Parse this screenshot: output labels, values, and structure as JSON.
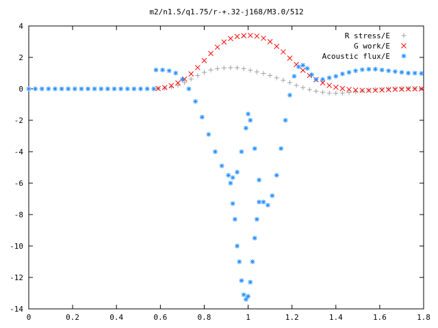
{
  "chart_data": {
    "type": "scatter",
    "title": "m2/n1.5/q1.75/r-+.32-j168/M3.0/512",
    "xlabel": "",
    "ylabel": "",
    "xlim": [
      0,
      1.8
    ],
    "ylim": [
      -14,
      4
    ],
    "x_ticks": [
      "0",
      "0.2",
      "0.4",
      "0.6",
      "0.8",
      "1",
      "1.2",
      "1.4",
      "1.6",
      "1.8"
    ],
    "y_ticks": [
      "4",
      "2",
      "0",
      "-2",
      "-4",
      "-6",
      "-8",
      "-10",
      "-12",
      "-14"
    ],
    "grid": false,
    "legend_position": "top-right",
    "series": [
      {
        "name": "R stress/E",
        "marker": "+",
        "color": "#a0a0a0",
        "points": [
          [
            0.59,
            0.02
          ],
          [
            0.62,
            0.05
          ],
          [
            0.65,
            0.12
          ],
          [
            0.68,
            0.22
          ],
          [
            0.71,
            0.4
          ],
          [
            0.74,
            0.62
          ],
          [
            0.77,
            0.85
          ],
          [
            0.8,
            1.05
          ],
          [
            0.83,
            1.2
          ],
          [
            0.86,
            1.28
          ],
          [
            0.89,
            1.33
          ],
          [
            0.92,
            1.35
          ],
          [
            0.95,
            1.34
          ],
          [
            0.98,
            1.28
          ],
          [
            1.01,
            1.18
          ],
          [
            1.04,
            1.08
          ],
          [
            1.07,
            0.98
          ],
          [
            1.1,
            0.85
          ],
          [
            1.13,
            0.7
          ],
          [
            1.16,
            0.55
          ],
          [
            1.19,
            0.4
          ],
          [
            1.22,
            0.22
          ],
          [
            1.25,
            0.08
          ],
          [
            1.28,
            -0.05
          ],
          [
            1.31,
            -0.15
          ],
          [
            1.34,
            -0.22
          ],
          [
            1.37,
            -0.27
          ],
          [
            1.4,
            -0.28
          ],
          [
            1.43,
            -0.27
          ],
          [
            1.46,
            -0.24
          ],
          [
            1.49,
            -0.19
          ],
          [
            1.52,
            -0.13
          ],
          [
            1.55,
            -0.08
          ],
          [
            1.58,
            -0.04
          ],
          [
            1.61,
            -0.02
          ],
          [
            1.64,
            0.0
          ],
          [
            1.67,
            0.01
          ],
          [
            1.7,
            0.02
          ],
          [
            1.73,
            0.02
          ],
          [
            1.76,
            0.02
          ],
          [
            1.79,
            0.02
          ]
        ]
      },
      {
        "name": "G work/E",
        "marker": "x",
        "color": "#ff0000",
        "points": [
          [
            0.59,
            0.02
          ],
          [
            0.62,
            0.08
          ],
          [
            0.65,
            0.2
          ],
          [
            0.68,
            0.38
          ],
          [
            0.71,
            0.62
          ],
          [
            0.74,
            0.95
          ],
          [
            0.77,
            1.35
          ],
          [
            0.8,
            1.8
          ],
          [
            0.83,
            2.25
          ],
          [
            0.86,
            2.65
          ],
          [
            0.89,
            2.98
          ],
          [
            0.92,
            3.2
          ],
          [
            0.95,
            3.33
          ],
          [
            0.98,
            3.38
          ],
          [
            1.01,
            3.4
          ],
          [
            1.04,
            3.35
          ],
          [
            1.07,
            3.22
          ],
          [
            1.1,
            3.0
          ],
          [
            1.13,
            2.7
          ],
          [
            1.16,
            2.35
          ],
          [
            1.19,
            1.95
          ],
          [
            1.22,
            1.55
          ],
          [
            1.25,
            1.18
          ],
          [
            1.28,
            0.85
          ],
          [
            1.31,
            0.58
          ],
          [
            1.34,
            0.38
          ],
          [
            1.37,
            0.22
          ],
          [
            1.4,
            0.1
          ],
          [
            1.43,
            0.02
          ],
          [
            1.46,
            -0.04
          ],
          [
            1.49,
            -0.08
          ],
          [
            1.52,
            -0.1
          ],
          [
            1.55,
            -0.1
          ],
          [
            1.58,
            -0.09
          ],
          [
            1.61,
            -0.07
          ],
          [
            1.64,
            -0.05
          ],
          [
            1.67,
            -0.03
          ],
          [
            1.7,
            -0.02
          ],
          [
            1.73,
            -0.01
          ],
          [
            1.76,
            0.0
          ],
          [
            1.79,
            0.0
          ]
        ]
      },
      {
        "name": "Acoustic flux/E",
        "marker": "*",
        "color": "#1e8cff",
        "points": [
          [
            0.0,
            0.0
          ],
          [
            0.03,
            0.0
          ],
          [
            0.06,
            0.0
          ],
          [
            0.09,
            0.0
          ],
          [
            0.12,
            0.0
          ],
          [
            0.15,
            0.0
          ],
          [
            0.18,
            0.0
          ],
          [
            0.21,
            0.0
          ],
          [
            0.24,
            0.0
          ],
          [
            0.27,
            0.0
          ],
          [
            0.3,
            0.0
          ],
          [
            0.33,
            0.0
          ],
          [
            0.36,
            0.0
          ],
          [
            0.39,
            0.0
          ],
          [
            0.42,
            0.0
          ],
          [
            0.45,
            0.0
          ],
          [
            0.48,
            0.0
          ],
          [
            0.51,
            0.0
          ],
          [
            0.54,
            0.0
          ],
          [
            0.57,
            0.0
          ],
          [
            0.58,
            1.2
          ],
          [
            0.61,
            1.2
          ],
          [
            0.64,
            1.15
          ],
          [
            0.67,
            1.0
          ],
          [
            0.7,
            0.6
          ],
          [
            0.73,
            0.0
          ],
          [
            0.76,
            -0.8
          ],
          [
            0.79,
            -1.8
          ],
          [
            0.82,
            -2.9
          ],
          [
            0.85,
            -4.0
          ],
          [
            0.88,
            -4.9
          ],
          [
            0.91,
            -5.5
          ],
          [
            0.93,
            -5.65
          ],
          [
            0.95,
            -5.3
          ],
          [
            0.97,
            -4.0
          ],
          [
            0.99,
            -2.5
          ],
          [
            1.0,
            -1.6
          ],
          [
            1.01,
            -2.0
          ],
          [
            1.03,
            -3.8
          ],
          [
            1.05,
            -5.8
          ],
          [
            1.07,
            -7.2
          ],
          [
            1.09,
            -7.4
          ],
          [
            1.11,
            -6.8
          ],
          [
            1.13,
            -5.5
          ],
          [
            1.15,
            -3.8
          ],
          [
            1.17,
            -2.0
          ],
          [
            1.19,
            -0.4
          ],
          [
            1.21,
            0.8
          ],
          [
            1.23,
            1.4
          ],
          [
            1.25,
            1.5
          ],
          [
            1.27,
            1.3
          ],
          [
            1.29,
            0.9
          ],
          [
            1.31,
            0.6
          ],
          [
            1.34,
            0.6
          ],
          [
            1.37,
            0.7
          ],
          [
            1.4,
            0.8
          ],
          [
            1.43,
            0.95
          ],
          [
            1.46,
            1.05
          ],
          [
            1.49,
            1.15
          ],
          [
            1.52,
            1.22
          ],
          [
            1.55,
            1.25
          ],
          [
            1.58,
            1.25
          ],
          [
            1.61,
            1.2
          ],
          [
            1.64,
            1.15
          ],
          [
            1.67,
            1.1
          ],
          [
            1.7,
            1.05
          ],
          [
            1.73,
            1.0
          ],
          [
            1.76,
            1.0
          ],
          [
            1.79,
            0.98
          ],
          [
            0.92,
            -6.0
          ],
          [
            0.93,
            -7.3
          ],
          [
            0.94,
            -8.3
          ],
          [
            0.95,
            -10.0
          ],
          [
            0.96,
            -11.0
          ],
          [
            0.97,
            -12.2
          ],
          [
            0.98,
            -13.1
          ],
          [
            0.99,
            -13.4
          ],
          [
            1.0,
            -13.2
          ],
          [
            1.01,
            -12.3
          ],
          [
            1.02,
            -11.0
          ],
          [
            1.03,
            -9.5
          ],
          [
            1.04,
            -8.3
          ],
          [
            1.05,
            -7.2
          ]
        ]
      }
    ]
  }
}
